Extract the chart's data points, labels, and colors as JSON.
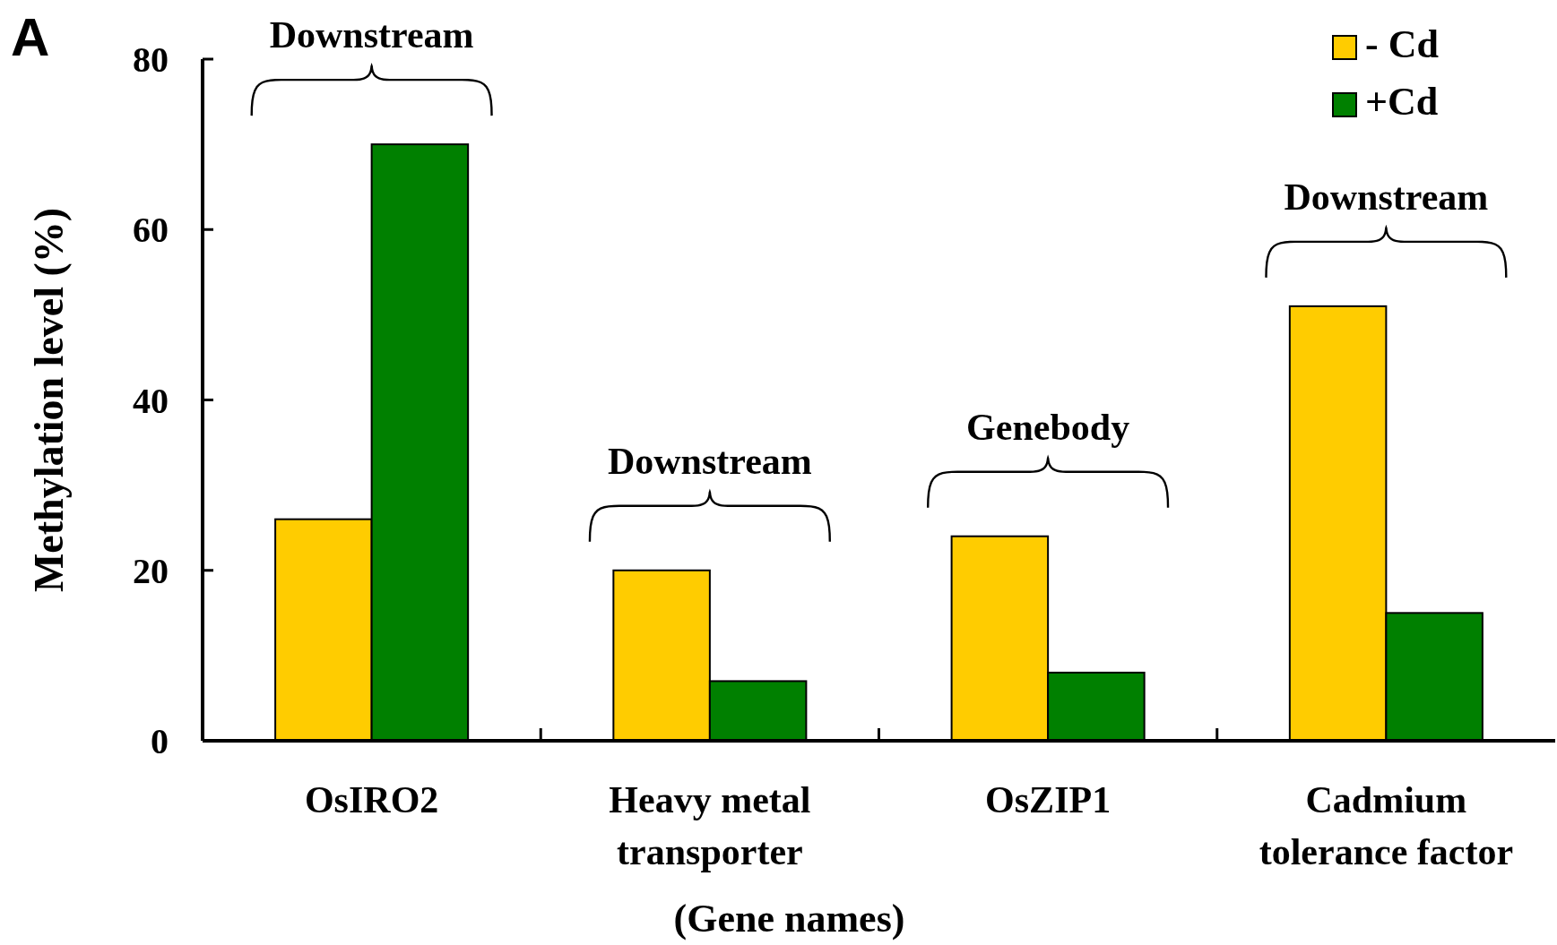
{
  "chart_data": {
    "type": "bar",
    "xlabel": "(Gene names)",
    "ylabel": "Methylation level (%)",
    "categories": [
      "OsIRO2",
      "Heavy metal\ntransporter",
      "OsZIP1",
      "Cadmium\ntolerance factor"
    ],
    "series": [
      {
        "name": "- Cd",
        "color": "#ffcc00",
        "values": [
          26,
          20,
          24,
          51
        ]
      },
      {
        "name": "+Cd",
        "color": "#008000",
        "values": [
          70,
          7,
          8,
          15
        ]
      }
    ],
    "ylim": [
      0,
      80
    ],
    "yticks": [
      0,
      20,
      40,
      60,
      80
    ],
    "grid": false,
    "legend": "top right",
    "annotations": [
      "A",
      "Downstream",
      "Downstream",
      "Genebody",
      "Downstream"
    ]
  }
}
